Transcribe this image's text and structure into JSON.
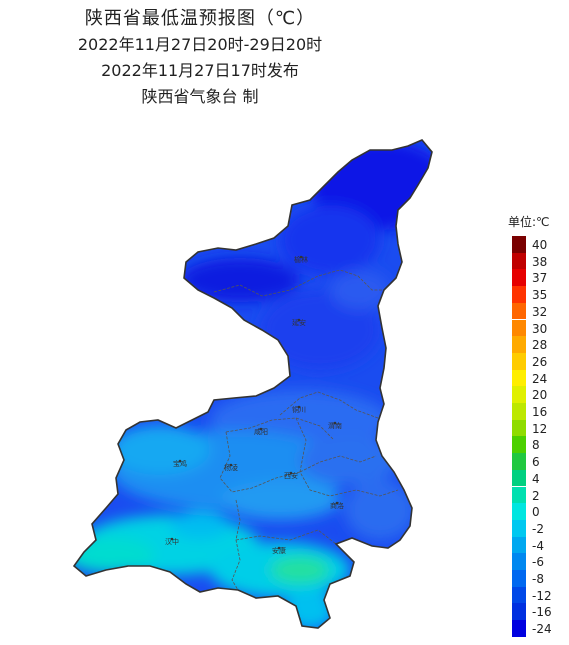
{
  "title": {
    "line1": "陕西省最低温预报图（℃）",
    "line2": "2022年11月27日20时-29日20时",
    "line3": "2022年11月27日17时发布",
    "line4": "陕西省气象台 制"
  },
  "legend": {
    "unit": "单位:℃",
    "items": [
      {
        "value": "40",
        "color": "#7a0000"
      },
      {
        "value": "38",
        "color": "#c00000"
      },
      {
        "value": "37",
        "color": "#e60000"
      },
      {
        "value": "35",
        "color": "#ff3300"
      },
      {
        "value": "32",
        "color": "#ff6600"
      },
      {
        "value": "30",
        "color": "#ff8800"
      },
      {
        "value": "28",
        "color": "#ffaa00"
      },
      {
        "value": "26",
        "color": "#ffcc00"
      },
      {
        "value": "24",
        "color": "#ffee00"
      },
      {
        "value": "20",
        "color": "#e0f000"
      },
      {
        "value": "16",
        "color": "#bde800"
      },
      {
        "value": "12",
        "color": "#8fdc00"
      },
      {
        "value": "8",
        "color": "#4cd000"
      },
      {
        "value": "6",
        "color": "#20c840"
      },
      {
        "value": "4",
        "color": "#00d080"
      },
      {
        "value": "2",
        "color": "#00e0b0"
      },
      {
        "value": "0",
        "color": "#00e6e0"
      },
      {
        "value": "-2",
        "color": "#00c8f0"
      },
      {
        "value": "-4",
        "color": "#00a8f0"
      },
      {
        "value": "-6",
        "color": "#0088f0"
      },
      {
        "value": "-8",
        "color": "#0068f0"
      },
      {
        "value": "-12",
        "color": "#0048e8"
      },
      {
        "value": "-16",
        "color": "#0030e0"
      },
      {
        "value": "-24",
        "color": "#0000e0"
      }
    ]
  },
  "cities": [
    {
      "name": "榆林"
    },
    {
      "name": "延安"
    },
    {
      "name": "铜川"
    },
    {
      "name": "渭南"
    },
    {
      "name": "咸阳"
    },
    {
      "name": "杨凌"
    },
    {
      "name": "宝鸡"
    },
    {
      "name": "西安"
    },
    {
      "name": "商洛"
    },
    {
      "name": "汉中"
    },
    {
      "name": "安康"
    }
  ]
}
